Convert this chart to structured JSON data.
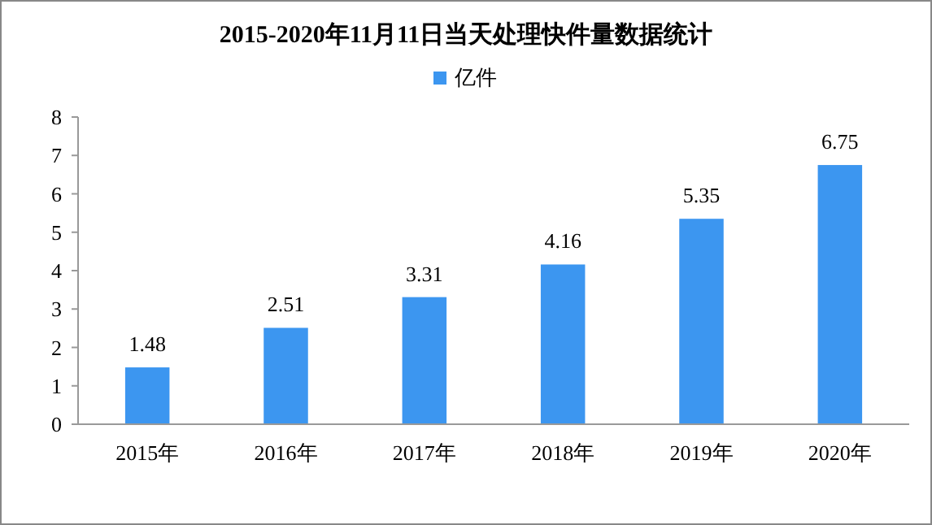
{
  "chart_data": {
    "type": "bar",
    "title": "2015-2020年11月11日当天处理快件量数据统计",
    "categories": [
      "2015年",
      "2016年",
      "2017年",
      "2018年",
      "2019年",
      "2020年"
    ],
    "series": [
      {
        "name": "亿件",
        "color": "#3c96f0",
        "values": [
          1.48,
          2.51,
          3.31,
          4.16,
          5.35,
          6.75
        ]
      }
    ],
    "ylim": [
      0,
      8
    ],
    "yticks": [
      0,
      1,
      2,
      3,
      4,
      5,
      6,
      7,
      8
    ],
    "data_labels": true,
    "legend": "top",
    "grid": false
  }
}
